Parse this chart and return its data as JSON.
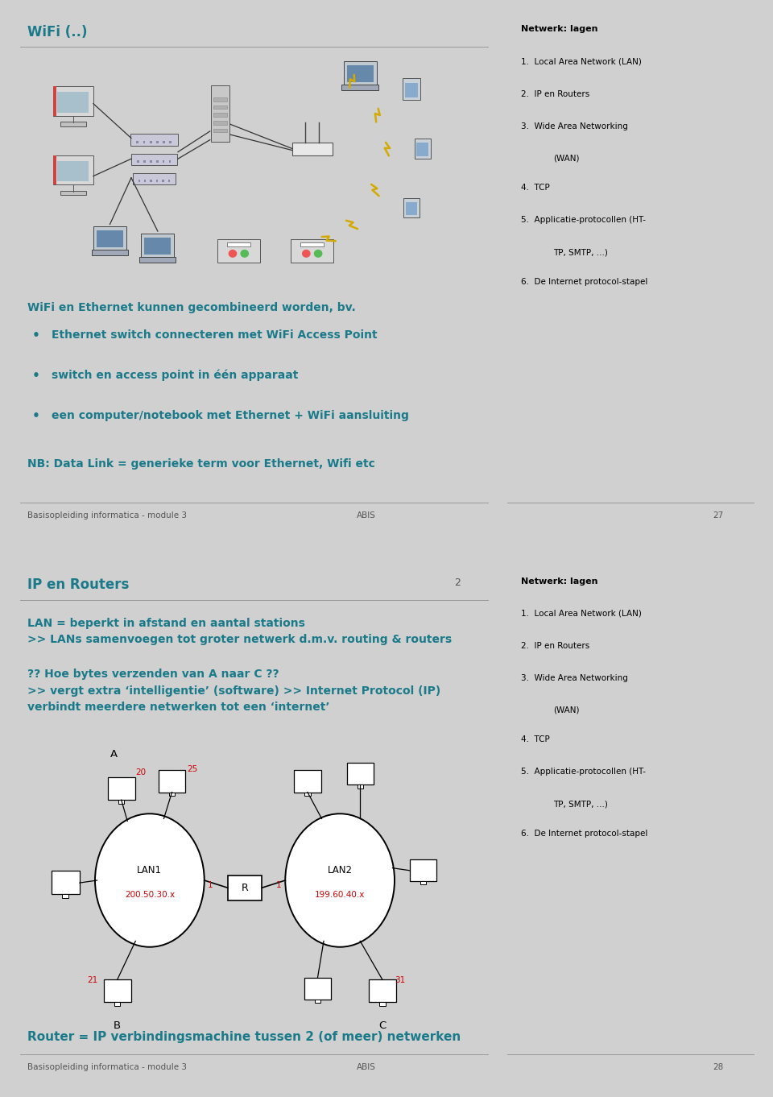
{
  "slide1": {
    "title": "WiFi (..)",
    "slide_number": "27",
    "footer_left": "Basisopleiding informatica - module 3",
    "footer_right": "ABIS",
    "intro_text": "WiFi en Ethernet kunnen gecombineerd worden, bv.",
    "bullets": [
      "Ethernet switch connecteren met WiFi Access Point",
      "switch en access point in één apparaat",
      "een computer/notebook met Ethernet + WiFi aansluiting"
    ],
    "nb_text": "NB: Data Link = generieke term voor Ethernet, Wifi etc",
    "sidebar_title": "Netwerk: lagen",
    "sidebar_items": [
      "Local Area Network (LAN)",
      "IP en Routers",
      "Wide Area Networking\n(WAN)",
      "TCP",
      "Applicatie-protocollen (HT-\nTP, SMTP, ...)",
      "De Internet protocol-stapel"
    ],
    "bg_color": "#ffffff",
    "sidebar_bg": "#bdd0d8",
    "title_color": "#1a7a8a",
    "text_color": "#1a7a8a",
    "nb_color": "#1a7a8a",
    "footer_line_color": "#888888"
  },
  "slide2": {
    "title": "IP en Routers",
    "slide_number": "28",
    "slide_num_right": "2",
    "footer_left": "Basisopleiding informatica - module 3",
    "footer_right": "ABIS",
    "text1": "LAN = beperkt in afstand en aantal stations\n>> LANs samenvoegen tot groter netwerk d.m.v. routing & routers",
    "text2": "?? Hoe bytes verzenden van A naar C ??\n>> vergt extra ‘intelligentie’ (software) >> Internet Protocol (IP)\nverbindt meerdere netwerken tot een ‘internet’",
    "bottom_text": "Router = IP verbindingsmachine tussen 2 (of meer) netwerken",
    "sidebar_title": "Netwerk: lagen",
    "sidebar_items": [
      "Local Area Network (LAN)",
      "IP en Routers",
      "Wide Area Networking\n(WAN)",
      "TCP",
      "Applicatie-protocollen (HT-\nTP, SMTP, ...)",
      "De Internet protocol-stapel"
    ],
    "bg_color": "#ffffff",
    "sidebar_bg": "#bdd0d8",
    "title_color": "#1a7a8a",
    "text_color": "#1a7a8a",
    "bottom_text_color": "#1a7a8a",
    "red_color": "#cc0000"
  },
  "divider_color": "#bbbbbb",
  "outer_bg": "#d0d0d0"
}
